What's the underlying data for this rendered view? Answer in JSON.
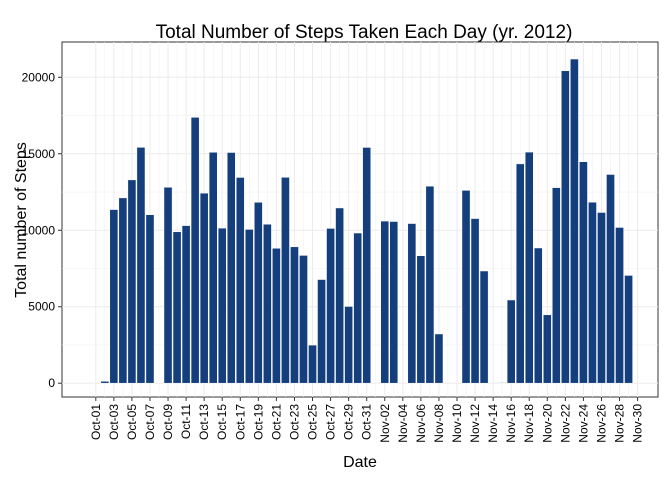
{
  "chart_data": {
    "type": "bar",
    "title": "Total Number of Steps Taken Each Day (yr. 2012)",
    "xlabel": "Date",
    "ylabel": "Total number of Steps",
    "ylim": [
      -1100,
      22200
    ],
    "y_ticks": [
      0,
      5000,
      10000,
      15000,
      20000
    ],
    "grid": true,
    "bar_color": "#143F7C",
    "x_tick_labels": [
      "Oct-01",
      "Oct-03",
      "Oct-05",
      "Oct-07",
      "Oct-09",
      "Oct-11",
      "Oct-13",
      "Oct-15",
      "Oct-17",
      "Oct-19",
      "Oct-21",
      "Oct-23",
      "Oct-25",
      "Oct-27",
      "Oct-29",
      "Oct-31",
      "Nov-02",
      "Nov-04",
      "Nov-06",
      "Nov-08",
      "Nov-10",
      "Nov-12",
      "Nov-14",
      "Nov-16",
      "Nov-18",
      "Nov-20",
      "Nov-22",
      "Nov-24",
      "Nov-26",
      "Nov-28",
      "Nov-30"
    ],
    "categories": [
      "Oct-01",
      "Oct-02",
      "Oct-03",
      "Oct-04",
      "Oct-05",
      "Oct-06",
      "Oct-07",
      "Oct-08",
      "Oct-09",
      "Oct-10",
      "Oct-11",
      "Oct-12",
      "Oct-13",
      "Oct-14",
      "Oct-15",
      "Oct-16",
      "Oct-17",
      "Oct-18",
      "Oct-19",
      "Oct-20",
      "Oct-21",
      "Oct-22",
      "Oct-23",
      "Oct-24",
      "Oct-25",
      "Oct-26",
      "Oct-27",
      "Oct-28",
      "Oct-29",
      "Oct-30",
      "Oct-31",
      "Nov-01",
      "Nov-02",
      "Nov-03",
      "Nov-04",
      "Nov-05",
      "Nov-06",
      "Nov-07",
      "Nov-08",
      "Nov-09",
      "Nov-10",
      "Nov-11",
      "Nov-12",
      "Nov-13",
      "Nov-14",
      "Nov-15",
      "Nov-16",
      "Nov-17",
      "Nov-18",
      "Nov-19",
      "Nov-20",
      "Nov-21",
      "Nov-22",
      "Nov-23",
      "Nov-24",
      "Nov-25",
      "Nov-26",
      "Nov-27",
      "Nov-28",
      "Nov-29",
      "Nov-30"
    ],
    "values": [
      null,
      126,
      11352,
      12116,
      13294,
      15420,
      11015,
      null,
      12811,
      9900,
      10304,
      17382,
      12426,
      15098,
      10139,
      15084,
      13452,
      10056,
      11829,
      10395,
      8821,
      13460,
      8918,
      8355,
      2492,
      6778,
      10119,
      11458,
      5018,
      9819,
      15414,
      null,
      10600,
      10571,
      null,
      10439,
      8334,
      12883,
      3219,
      null,
      null,
      12608,
      10765,
      7336,
      null,
      41,
      5441,
      14339,
      15110,
      8841,
      4472,
      12787,
      20427,
      21194,
      14478,
      11834,
      11162,
      13646,
      10183,
      7047,
      null
    ]
  }
}
